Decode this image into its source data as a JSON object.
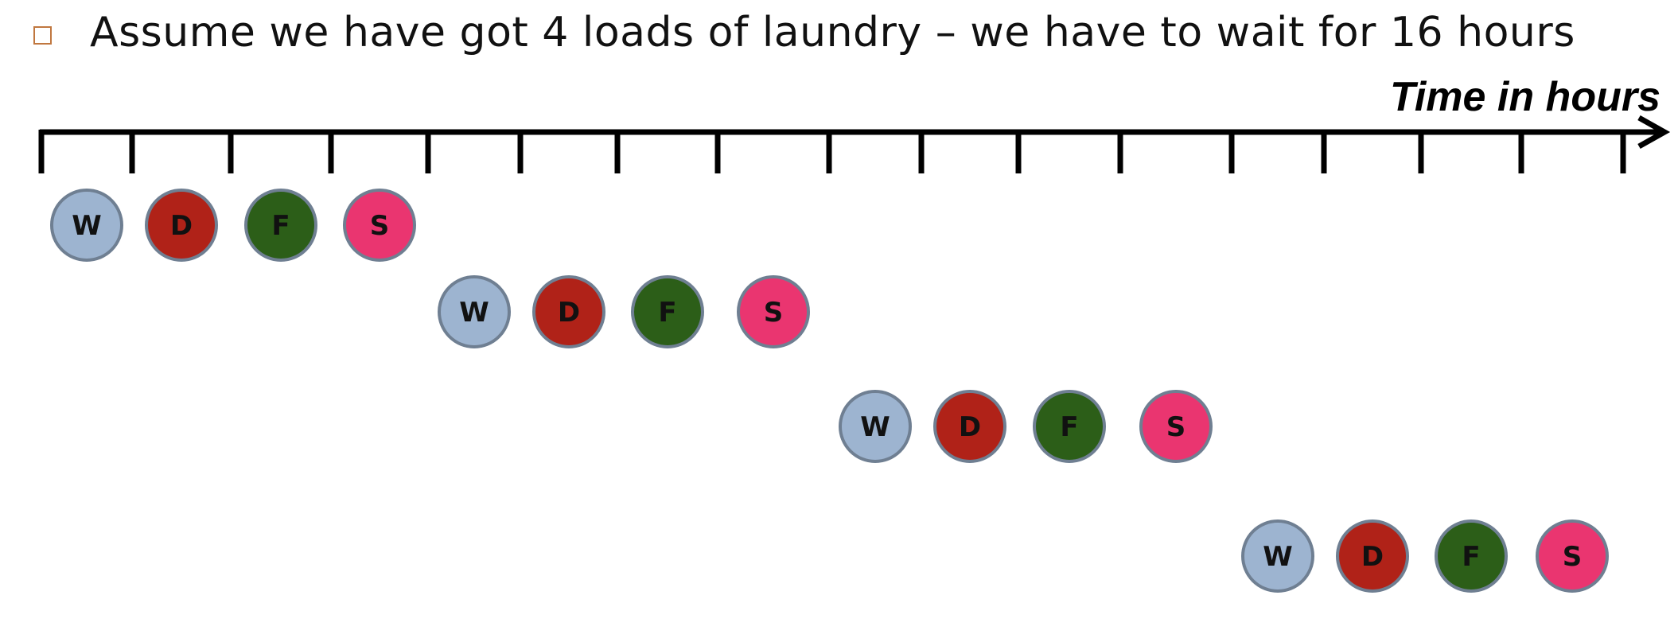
{
  "bullet": {
    "icon": "square-bullet-icon",
    "text": "Assume we have got 4 loads of laundry – we have to wait for 16 hours"
  },
  "axis": {
    "label": "Time in hours",
    "tick_count": 17
  },
  "stages": [
    {
      "letter": "W",
      "fill": "#9db4d0"
    },
    {
      "letter": "D",
      "fill": "#b02218"
    },
    {
      "letter": "F",
      "fill": "#2c5e18"
    },
    {
      "letter": "S",
      "fill": "#ea3570"
    }
  ],
  "loads": [
    {
      "start_hour": 0,
      "stages": [
        "W",
        "D",
        "F",
        "S"
      ]
    },
    {
      "start_hour": 4,
      "stages": [
        "W",
        "D",
        "F",
        "S"
      ]
    },
    {
      "start_hour": 8,
      "stages": [
        "W",
        "D",
        "F",
        "S"
      ]
    },
    {
      "start_hour": 12,
      "stages": [
        "W",
        "D",
        "F",
        "S"
      ]
    }
  ],
  "colors": {
    "circle_stroke": "#6f7f92",
    "axis": "#000000",
    "bullet": "#c0773f"
  }
}
